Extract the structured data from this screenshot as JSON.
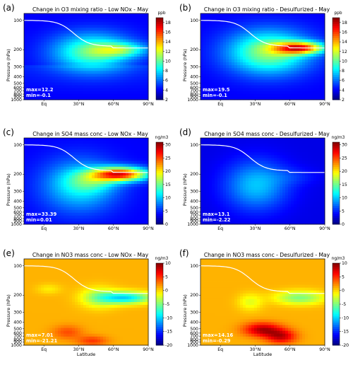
{
  "chart_data": [
    {
      "type": "heatmap",
      "panel_label": "(a)",
      "title": "Change in O3 mixing ratio - Low NOx - May",
      "units": "ppb",
      "ylabel": "Pressure (hPa)",
      "xlabel": "",
      "x_ticks": [
        "Eq",
        "30°N",
        "60°N",
        "90°N"
      ],
      "y_ticks": [
        "100",
        "200",
        "300",
        "400",
        "500",
        "600",
        "700",
        "800",
        "900",
        "1000"
      ],
      "colorbar_ticks": [
        2,
        4,
        6,
        8,
        10,
        12,
        14,
        16,
        18
      ],
      "colorbar_range": [
        2,
        19
      ],
      "max_label": "max=12.2",
      "min_label": "min=-0.1",
      "max": 12.2,
      "min": -0.1,
      "colormap": "jet",
      "tropopause_line": "white"
    },
    {
      "type": "heatmap",
      "panel_label": "(b)",
      "title": "Change in O3 mixing ratio - Desulfurized - May",
      "units": "ppb",
      "ylabel": "Pressure (hPa)",
      "xlabel": "",
      "x_ticks": [
        "Eq",
        "30°N",
        "60°N",
        "90°N"
      ],
      "y_ticks": [
        "100",
        "200",
        "300",
        "400",
        "500",
        "600",
        "700",
        "800",
        "900",
        "1000"
      ],
      "colorbar_ticks": [
        2,
        4,
        6,
        8,
        10,
        12,
        14,
        16,
        18
      ],
      "colorbar_range": [
        2,
        19
      ],
      "max_label": "max=19.5",
      "min_label": "min=-0.1",
      "max": 19.5,
      "min": -0.1,
      "colormap": "jet",
      "tropopause_line": "white"
    },
    {
      "type": "heatmap",
      "panel_label": "(c)",
      "title": "Change in SO4 mass conc - Low NOx - May",
      "units": "ng/m3",
      "ylabel": "Pressure (hPa)",
      "xlabel": "",
      "x_ticks": [
        "Eq",
        "30°N",
        "60°N",
        "90°N"
      ],
      "y_ticks": [
        "100",
        "200",
        "300",
        "400",
        "500",
        "600",
        "700",
        "800",
        "900",
        "1000"
      ],
      "colorbar_ticks": [
        0,
        5,
        10,
        15,
        20,
        25,
        30
      ],
      "colorbar_range": [
        0,
        31
      ],
      "max_label": "max=33.39",
      "min_label": "min=0.01",
      "max": 33.39,
      "min": 0.01,
      "colormap": "jet",
      "tropopause_line": "white"
    },
    {
      "type": "heatmap",
      "panel_label": "(d)",
      "title": "Change in SO4 mass conc - Desulfurized - May",
      "units": "ng/m3",
      "ylabel": "Pressure (hPa)",
      "xlabel": "",
      "x_ticks": [
        "Eq",
        "30°N",
        "60°N",
        "90°N"
      ],
      "y_ticks": [
        "100",
        "200",
        "300",
        "400",
        "500",
        "600",
        "700",
        "800",
        "900",
        "1000"
      ],
      "colorbar_ticks": [
        0,
        5,
        10,
        15,
        20,
        25,
        30
      ],
      "colorbar_range": [
        0,
        31
      ],
      "max_label": "max=13.1",
      "min_label": "min=-2.22",
      "max": 13.1,
      "min": -2.22,
      "colormap": "jet",
      "tropopause_line": "white"
    },
    {
      "type": "heatmap",
      "panel_label": "(e)",
      "title": "Change in NO3 mass conc - Low NOx - May",
      "units": "ng/m3",
      "ylabel": "Pressure (hPa)",
      "xlabel": "Latitude",
      "x_ticks": [
        "Eq",
        "30°N",
        "60°N",
        "90°N"
      ],
      "y_ticks": [
        "100",
        "200",
        "300",
        "400",
        "500",
        "600",
        "700",
        "800",
        "900",
        "1000"
      ],
      "colorbar_ticks": [
        -20,
        -15,
        -10,
        -5,
        0,
        5,
        10
      ],
      "colorbar_range": [
        -20,
        10
      ],
      "max_label": "max=7.01",
      "min_label": "min=-21.21",
      "max": 7.01,
      "min": -21.21,
      "colormap": "jet",
      "tropopause_line": "white"
    },
    {
      "type": "heatmap",
      "panel_label": "(f)",
      "title": "Change in NO3 mass conc - Desulfurized - May",
      "units": "ng/m3",
      "ylabel": "Pressure (hPa)",
      "xlabel": "Latitude",
      "x_ticks": [
        "Eq",
        "30°N",
        "60°N",
        "90°N"
      ],
      "y_ticks": [
        "100",
        "200",
        "300",
        "400",
        "500",
        "600",
        "700",
        "800",
        "900",
        "1000"
      ],
      "colorbar_ticks": [
        -20,
        -15,
        -10,
        -5,
        0,
        5,
        10
      ],
      "colorbar_range": [
        -20,
        10
      ],
      "max_label": "max=14.16",
      "min_label": "min=-0.29",
      "max": 14.16,
      "min": -0.29,
      "colormap": "jet",
      "tropopause_line": "white"
    }
  ]
}
